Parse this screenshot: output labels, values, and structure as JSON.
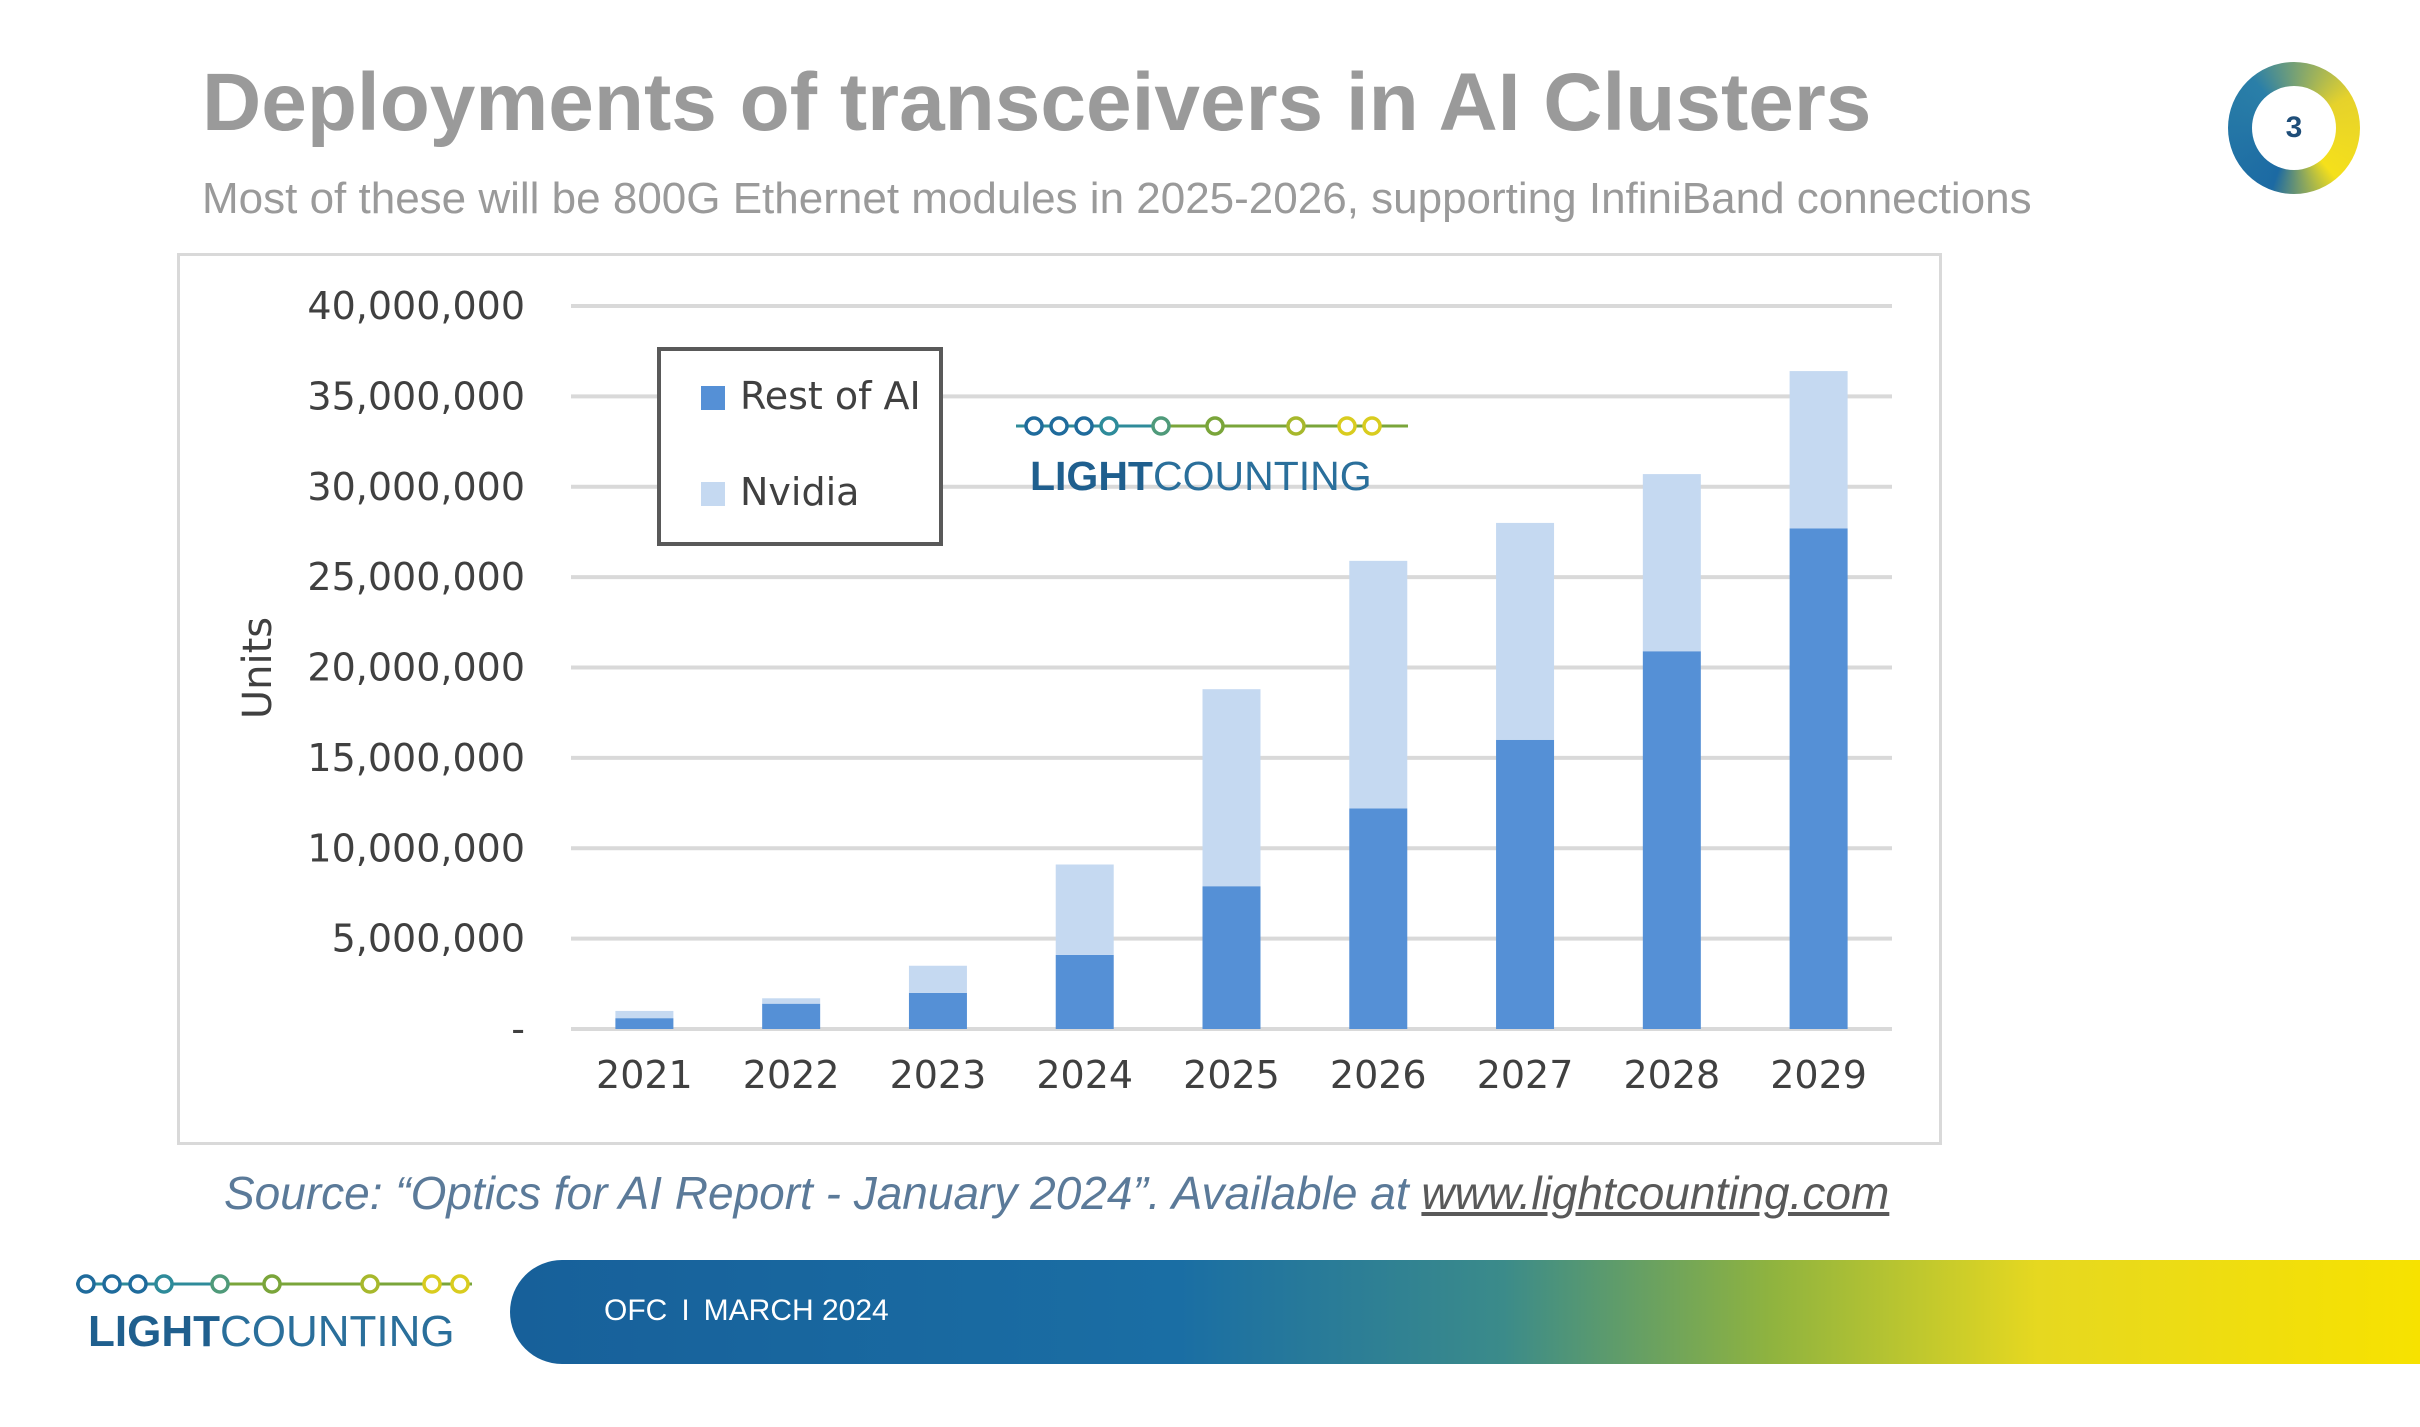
{
  "title": "Deployments of transceivers in AI Clusters",
  "subtitle": "Most of these will be 800G Ethernet modules in 2025-2026, supporting InfiniBand connections",
  "page_number": "3",
  "logo": {
    "part1": "LIGHT",
    "part2": "COUNTING",
    "colors": {
      "blue": "#1f5f8e",
      "teal": "#2e8b9a",
      "green": "#7aa53a",
      "yellow": "#d9cc1f"
    }
  },
  "source": {
    "prefix": "Source: “Optics for AI Report - January 2024”. Available at ",
    "link": "www.lightcounting.com"
  },
  "footer": {
    "event": "OFC",
    "separator": "I",
    "date": "MARCH 2024"
  },
  "chart_data": {
    "type": "bar",
    "stacked": true,
    "title": "",
    "xlabel": "",
    "ylabel": "Units",
    "ylim": [
      0,
      40000000
    ],
    "ytick_values": [
      0,
      5000000,
      10000000,
      15000000,
      20000000,
      25000000,
      30000000,
      35000000,
      40000000
    ],
    "ytick_labels": [
      "-",
      "5,000,000",
      "10,000,000",
      "15,000,000",
      "20,000,000",
      "25,000,000",
      "30,000,000",
      "35,000,000",
      "40,000,000"
    ],
    "categories": [
      "2021",
      "2022",
      "2023",
      "2024",
      "2025",
      "2026",
      "2027",
      "2028",
      "2029"
    ],
    "series": [
      {
        "name": "Rest of AI",
        "color": "#5590d6",
        "values": [
          600000,
          1400000,
          2000000,
          4100000,
          7900000,
          12200000,
          16000000,
          20900000,
          27700000
        ]
      },
      {
        "name": "Nvidia",
        "color": "#c5d9f1",
        "values": [
          400000,
          300000,
          1500000,
          5000000,
          10900000,
          13700000,
          12000000,
          9800000,
          8700000
        ]
      }
    ],
    "legend": {
      "position": "top-left inside",
      "entries": [
        "Rest of AI",
        "Nvidia"
      ]
    },
    "grid": true,
    "gridline_color": "#d9d9d9",
    "axis_text_color": "#404040"
  }
}
